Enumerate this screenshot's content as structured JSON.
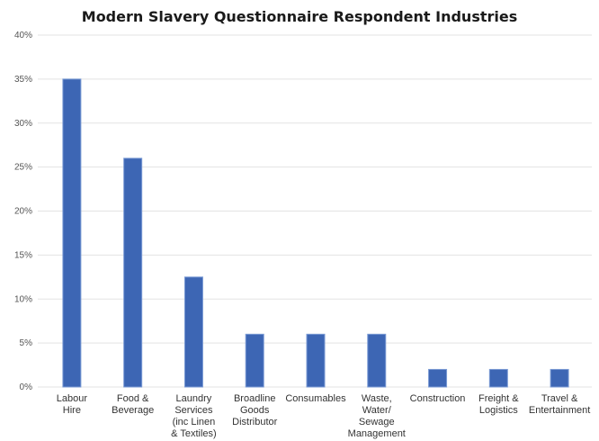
{
  "chart_data": {
    "type": "bar",
    "title": "Modern Slavery Questionnaire Respondent Industries",
    "xlabel": "",
    "ylabel": "",
    "categories": [
      [
        "Labour",
        "Hire"
      ],
      [
        "Food &",
        "Beverage"
      ],
      [
        "Laundry",
        "Services",
        "(inc Linen",
        "& Textiles)"
      ],
      [
        "Broadline",
        "Goods",
        "Distributor"
      ],
      [
        "Consumables"
      ],
      [
        "Waste,",
        "Water/",
        "Sewage",
        "Management"
      ],
      [
        "Construction"
      ],
      [
        "Freight &",
        "Logistics"
      ],
      [
        "Travel &",
        "Entertainment"
      ]
    ],
    "values": [
      35,
      26,
      12.5,
      6,
      6,
      6,
      2,
      2,
      2
    ],
    "ylim": [
      0,
      40
    ],
    "yticks": [
      "0%",
      "5%",
      "10%",
      "15%",
      "20%",
      "25%",
      "30%",
      "35%",
      "40%"
    ],
    "grid": true,
    "legend": "none",
    "bar_color": "#3d66b4"
  }
}
